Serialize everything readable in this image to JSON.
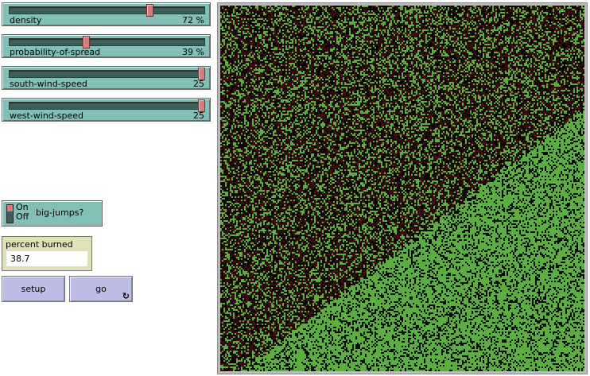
{
  "sliders": [
    {
      "label": "density",
      "value": 72,
      "display": "72 %",
      "min": 0,
      "max": 99
    },
    {
      "label": "probability-of-spread",
      "value": 39,
      "display": "39 %",
      "min": 0,
      "max": 100
    },
    {
      "label": "south-wind-speed",
      "value": 25,
      "display": "25",
      "min": -25,
      "max": 25
    },
    {
      "label": "west-wind-speed",
      "value": 25,
      "display": "25",
      "min": -25,
      "max": 25
    }
  ],
  "toggle": {
    "label": "big-jumps?",
    "on": "On",
    "off": "Off",
    "state": true
  },
  "monitor": {
    "label": "percent burned",
    "value": "38.7"
  },
  "buttons": {
    "setup": "setup",
    "go": "go",
    "go_icon": "forever-icon"
  },
  "world": {
    "colors": {
      "tree": "#59b03c",
      "burned": "#3a0c0c",
      "ground": "#000000"
    }
  }
}
